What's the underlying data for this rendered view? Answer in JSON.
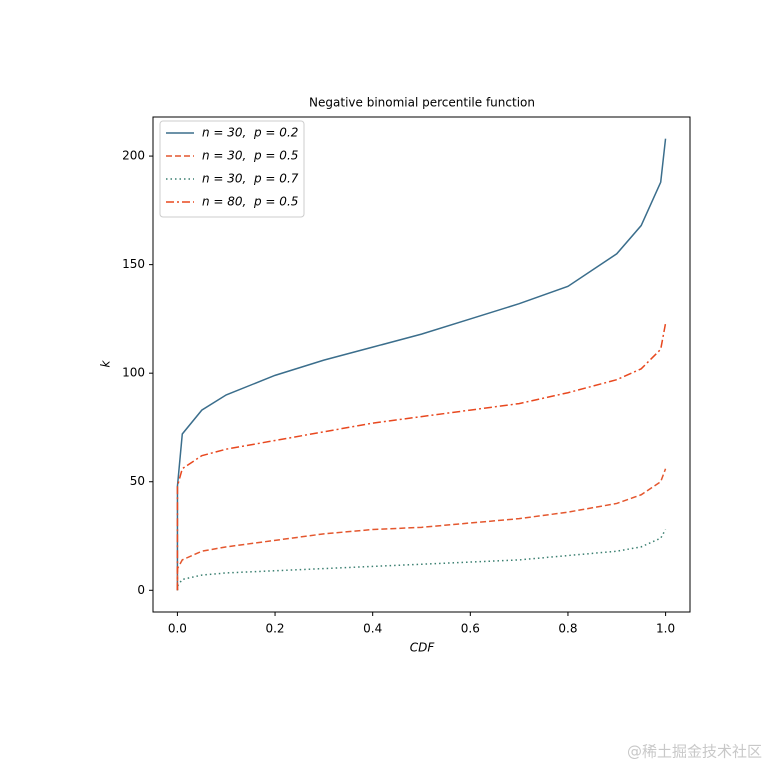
{
  "chart_data": {
    "type": "line",
    "title": "Negative binomial percentile function",
    "x_label": "CDF",
    "y_label": "k",
    "x": [
      0,
      0.0001,
      0.01,
      0.05,
      0.1,
      0.2,
      0.3,
      0.4,
      0.5,
      0.6,
      0.7,
      0.8,
      0.9,
      0.95,
      0.99,
      0.9999
    ],
    "series": [
      {
        "name": "n = 30,  p = 0.2",
        "color": "#3b6e8c",
        "linestyle": "solid",
        "values": [
          0,
          48,
          72,
          83,
          90,
          99,
          106,
          112,
          118,
          125,
          132,
          140,
          155,
          168,
          188,
          208
        ]
      },
      {
        "name": "n = 30,  p = 0.5",
        "color": "#e4572e",
        "linestyle": "dashed",
        "values": [
          0,
          10,
          14,
          18,
          20,
          23,
          26,
          28,
          29,
          31,
          33,
          36,
          40,
          44,
          50,
          56
        ]
      },
      {
        "name": "n = 30,  p = 0.7",
        "color": "#3a7f70",
        "linestyle": "dotted",
        "values": [
          0,
          2,
          5,
          7,
          8,
          9,
          10,
          11,
          12,
          13,
          14,
          16,
          18,
          20,
          24,
          28
        ]
      },
      {
        "name": "n = 80,  p = 0.5",
        "color": "#e8481f",
        "linestyle": "dashdot",
        "values": [
          0,
          48,
          56,
          62,
          65,
          69,
          73,
          77,
          80,
          83,
          86,
          91,
          97,
          102,
          111,
          123
        ]
      }
    ],
    "xlim": [
      -0.05,
      1.05
    ],
    "ylim": [
      -10,
      218
    ],
    "xticks": [
      {
        "value": 0,
        "label": "0.0"
      },
      0.2,
      0.4,
      0.6,
      0.8,
      {
        "value": 1,
        "label": "1.0"
      }
    ],
    "yticks": [
      0,
      50,
      100,
      150,
      200
    ],
    "legend": "upper left",
    "watermark": "@稀土掘金技术社区"
  }
}
